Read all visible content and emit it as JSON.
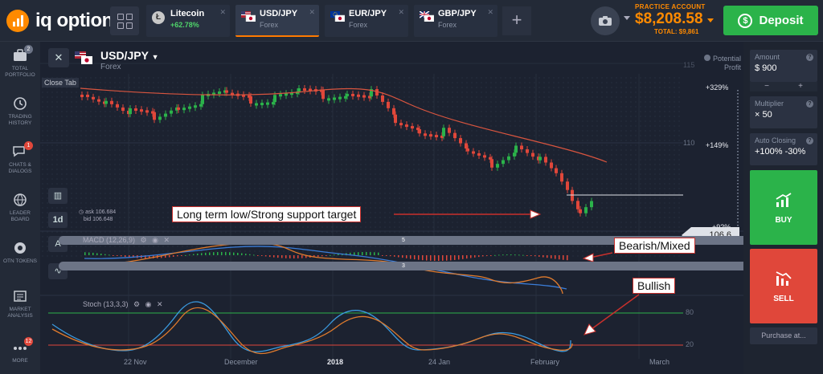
{
  "header": {
    "logo_text": "iq option",
    "tabs": [
      {
        "name": "Litecoin",
        "sub": "+62.78%",
        "icon": "litecoin-icon"
      },
      {
        "name": "USD/JPY",
        "sub": "Forex",
        "icon": "us-japan-flag-icon"
      },
      {
        "name": "EUR/JPY",
        "sub": "Forex",
        "icon": "eu-japan-flag-icon"
      },
      {
        "name": "GBP/JPY",
        "sub": "Forex",
        "icon": "uk-japan-flag-icon"
      }
    ],
    "account_label": "PRACTICE ACCOUNT",
    "balance": "$8,208.58",
    "total": "TOTAL: $9,861",
    "deposit_label": "Deposit"
  },
  "sidebar": {
    "items": [
      {
        "label": "TOTAL PORTFOLIO",
        "badge": "2",
        "icon": "portfolio-icon"
      },
      {
        "label": "TRADING HISTORY",
        "badge": "",
        "icon": "history-icon"
      },
      {
        "label": "CHATS & DIALOGS",
        "badge": "1",
        "icon": "chat-icon"
      },
      {
        "label": "LEADER BOARD",
        "badge": "",
        "icon": "leaderboard-icon"
      },
      {
        "label": "OTN TOKENS",
        "badge": "",
        "icon": "otn-token-icon"
      },
      {
        "label": "MARKET ANALYSIS",
        "badge": "",
        "icon": "market-analysis-icon"
      },
      {
        "label": "MORE",
        "badge": "12",
        "icon": "more-icon"
      }
    ]
  },
  "chart": {
    "asset": "USD/JPY",
    "asset_sub": "Forex",
    "close_tab_label": "Close Tab",
    "ask": "ask 106.684",
    "bid": "bid 106.648",
    "timeframe": "1d",
    "tool_badge_1": "5",
    "tool_badge_2": "3",
    "potential_profit_line1": "Potential",
    "potential_profit_line2": "Profit",
    "price_levels": [
      "115",
      "110"
    ],
    "profit_levels": [
      "+329%",
      "+149%",
      "+92%"
    ],
    "current_price": "106.6",
    "macd_label": "MACD (12,26,9)",
    "stoch_label": "Stoch (13,3,3)",
    "stoch_levels": [
      "80",
      "20"
    ],
    "x_labels": [
      "22 Nov",
      "December",
      "2018",
      "24 Jan",
      "February",
      "March"
    ],
    "annotations": {
      "support": "Long term low/Strong support target",
      "macd": "Bearish/Mixed",
      "stoch": "Bullish"
    },
    "colors": {
      "up": "#2bb34a",
      "down": "#e0473a",
      "annotation_border": "#c9302c"
    }
  },
  "right_panel": {
    "amount_label": "Amount",
    "amount_value": "$ 900",
    "minus": "−",
    "plus": "+",
    "multiplier_label": "Multiplier",
    "multiplier_value": "× 50",
    "auto_closing_label": "Auto Closing",
    "auto_closing_value": "+100% -30%",
    "buy_label": "BUY",
    "sell_label": "SELL",
    "purchase_label": "Purchase at..."
  }
}
